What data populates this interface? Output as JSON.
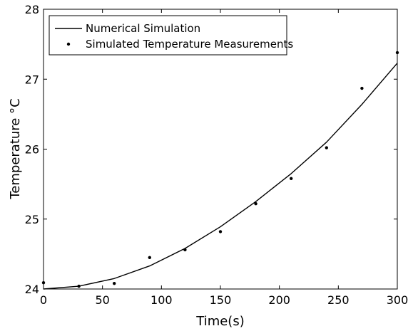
{
  "chart_data": {
    "type": "line",
    "title": "",
    "xlabel": "Time(s)",
    "ylabel": "Temperature °C",
    "xlim": [
      0,
      300
    ],
    "ylim": [
      24,
      28
    ],
    "xticks": [
      0,
      50,
      100,
      150,
      200,
      250,
      300
    ],
    "yticks": [
      24,
      25,
      26,
      27,
      28
    ],
    "grid": false,
    "legend_position": "top-left",
    "series": [
      {
        "name": "Numerical Simulation",
        "style": "line",
        "color": "#000000",
        "x": [
          0,
          30,
          60,
          90,
          120,
          150,
          180,
          210,
          240,
          270,
          300
        ],
        "y": [
          24.0,
          24.04,
          24.15,
          24.33,
          24.58,
          24.89,
          25.25,
          25.65,
          26.1,
          26.64,
          27.23
        ]
      },
      {
        "name": "Simulated Temperature Measurements",
        "style": "scatter",
        "color": "#000000",
        "x": [
          0,
          30,
          60,
          90,
          120,
          150,
          180,
          210,
          240,
          270,
          300
        ],
        "y": [
          24.09,
          24.04,
          24.08,
          24.45,
          24.56,
          24.82,
          25.22,
          25.58,
          26.02,
          26.87,
          27.38
        ]
      }
    ]
  }
}
